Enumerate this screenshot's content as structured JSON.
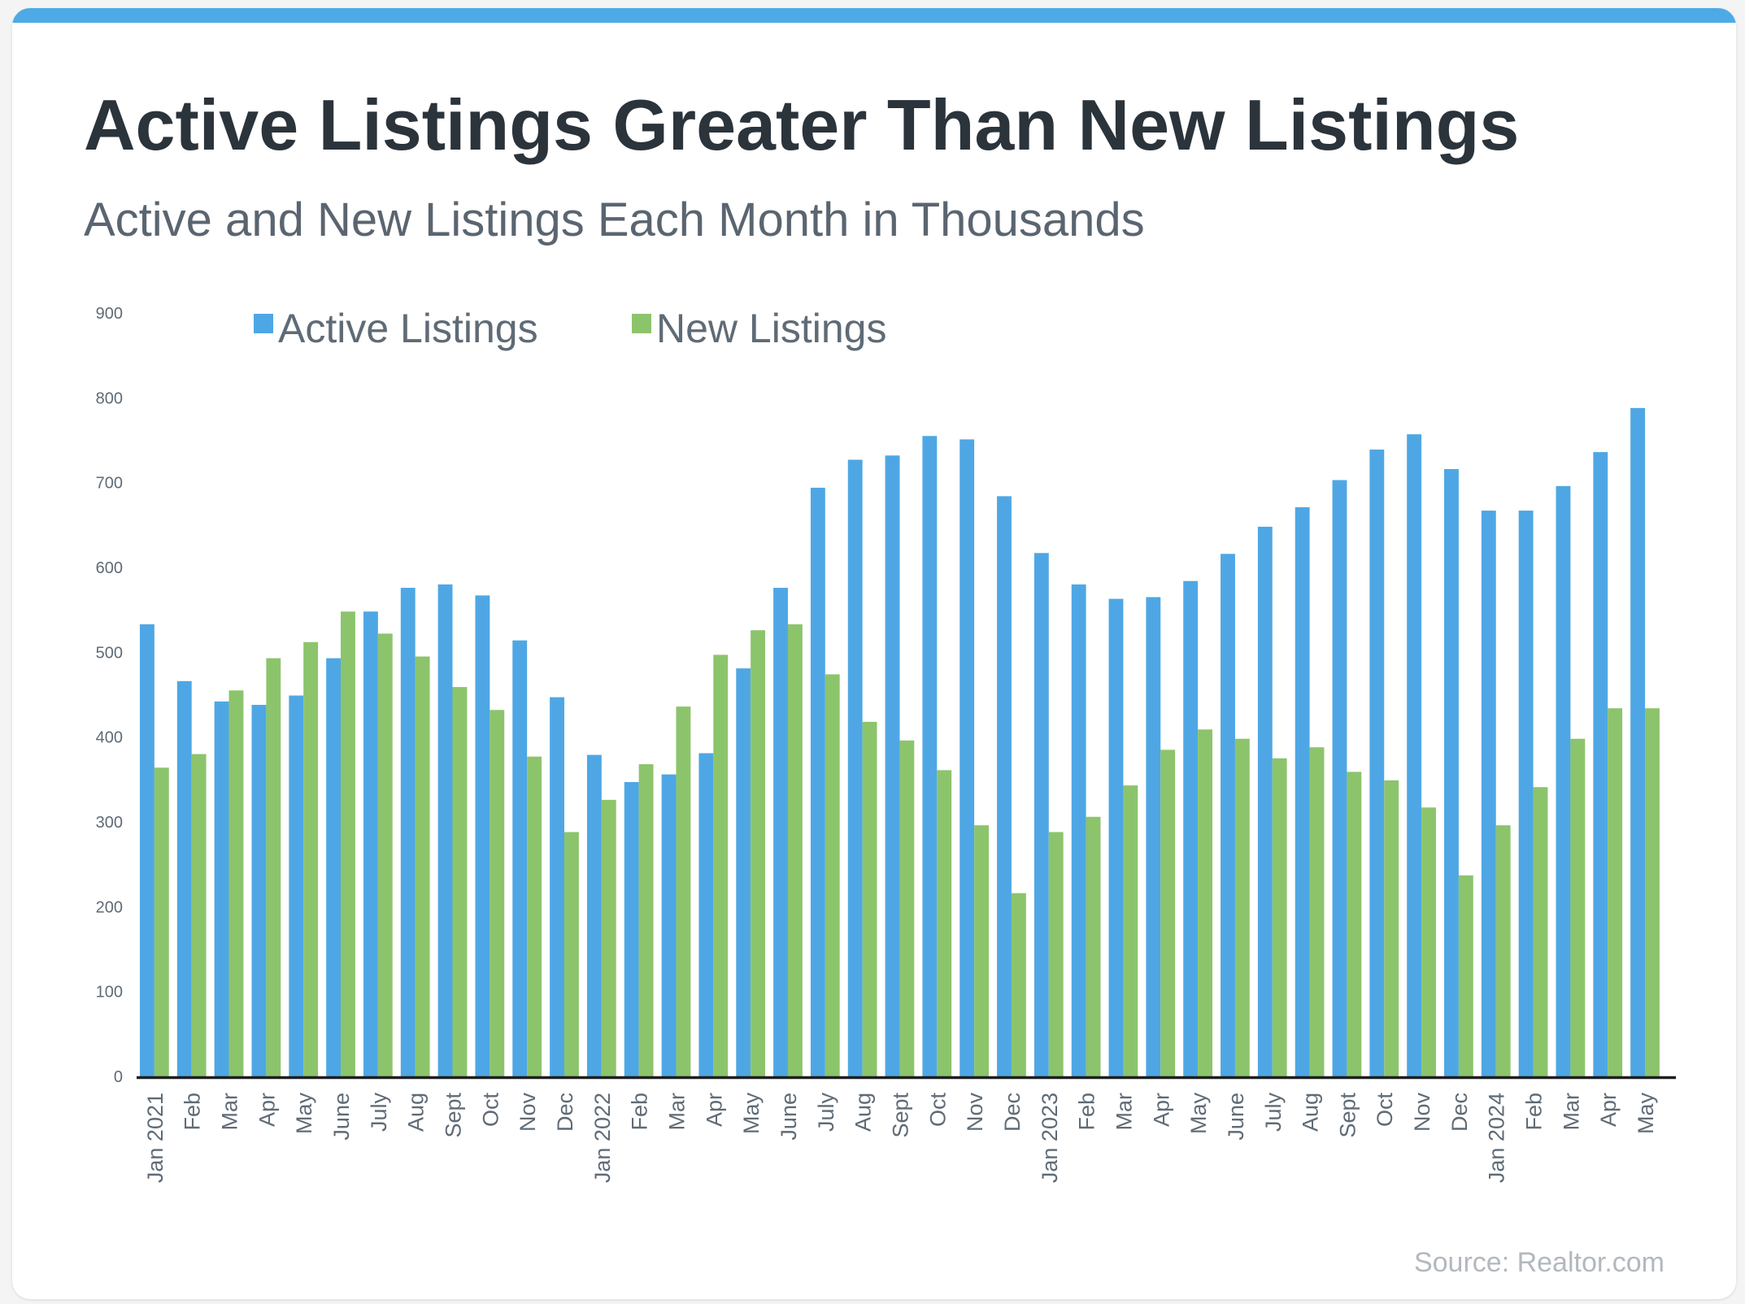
{
  "title": "Active Listings Greater Than New Listings",
  "subtitle": "Active and New Listings Each Month in Thousands",
  "source": "Source: Realtor.com",
  "colors": {
    "accent": "#4daae6",
    "active": "#4ea7e4",
    "new": "#8cc46c",
    "axis": "#1e1e1e",
    "text": "#2b333b"
  },
  "chart_data": {
    "type": "bar",
    "categories": [
      "Jan 2021",
      "Feb",
      "Mar",
      "Apr",
      "May",
      "June",
      "July",
      "Aug",
      "Sept",
      "Oct",
      "Nov",
      "Dec",
      "Jan 2022",
      "Feb",
      "Mar",
      "Apr",
      "May",
      "June",
      "July",
      "Aug",
      "Sept",
      "Oct",
      "Nov",
      "Dec",
      "Jan 2023",
      "Feb",
      "Mar",
      "Apr",
      "May",
      "June",
      "July",
      "Aug",
      "Sept",
      "Oct",
      "Nov",
      "Dec",
      "Jan 2024",
      "Feb",
      "Mar",
      "Apr",
      "May"
    ],
    "series": [
      {
        "name": "Active Listings",
        "values": [
          533,
          466,
          442,
          438,
          449,
          493,
          548,
          576,
          580,
          567,
          514,
          447,
          379,
          347,
          356,
          381,
          481,
          576,
          694,
          727,
          732,
          755,
          751,
          684,
          617,
          580,
          563,
          565,
          584,
          616,
          648,
          671,
          703,
          739,
          757,
          716,
          667,
          667,
          696,
          736,
          788
        ]
      },
      {
        "name": "New Listings",
        "values": [
          364,
          380,
          455,
          493,
          512,
          548,
          522,
          495,
          459,
          432,
          377,
          288,
          326,
          368,
          436,
          497,
          526,
          533,
          474,
          418,
          396,
          361,
          296,
          216,
          288,
          306,
          343,
          385,
          409,
          398,
          375,
          388,
          359,
          349,
          317,
          237,
          296,
          341,
          398,
          434,
          434
        ]
      }
    ],
    "ylim": [
      0,
      900
    ],
    "yticks": [
      0,
      100,
      200,
      300,
      400,
      500,
      600,
      700,
      800,
      900
    ],
    "legend": "top-left",
    "grid": false
  }
}
